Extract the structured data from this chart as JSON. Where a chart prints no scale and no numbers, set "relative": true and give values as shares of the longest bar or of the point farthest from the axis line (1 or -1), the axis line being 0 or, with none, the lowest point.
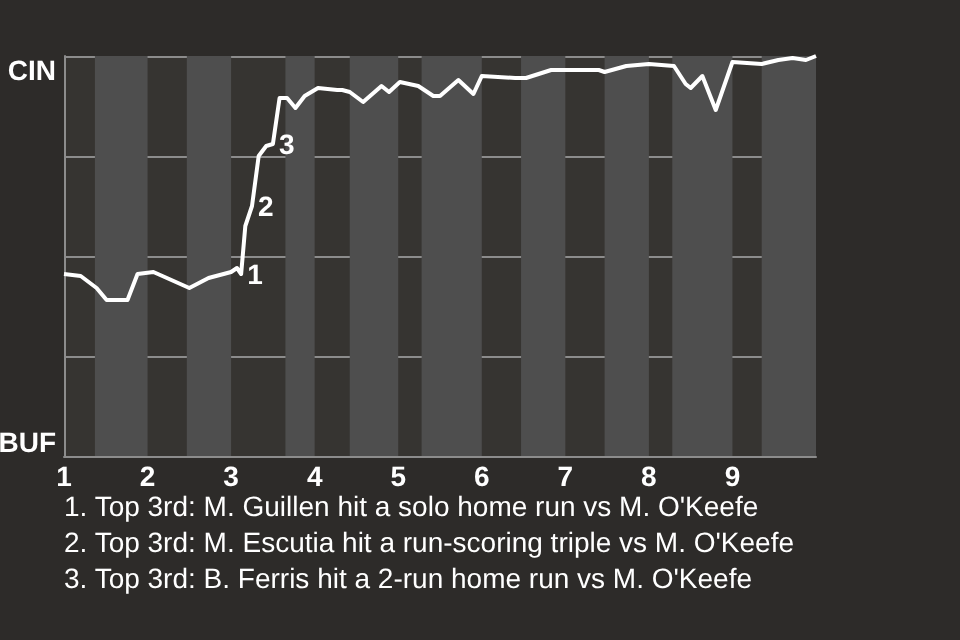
{
  "chart_data": {
    "type": "line",
    "relative": true,
    "x": [
      1.0,
      1.2,
      1.39,
      1.51,
      1.76,
      1.88,
      2.07,
      2.5,
      2.73,
      3.0,
      3.07,
      3.12,
      3.17,
      3.25,
      3.33,
      3.42,
      3.5,
      3.58,
      3.67,
      3.77,
      3.88,
      4.04,
      4.27,
      4.33,
      4.42,
      4.58,
      4.8,
      4.89,
      5.02,
      5.24,
      5.42,
      5.5,
      5.72,
      5.9,
      6.0,
      6.4,
      6.53,
      6.83,
      7.4,
      7.47,
      7.73,
      8.0,
      8.3,
      8.44,
      8.5,
      8.64,
      8.8,
      9.0,
      9.35,
      9.55,
      9.72,
      9.88,
      10.0
    ],
    "series": [
      {
        "values": [
          0.455,
          0.45,
          0.42,
          0.39,
          0.39,
          0.455,
          0.46,
          0.42,
          0.445,
          0.46,
          0.47,
          0.455,
          0.575,
          0.625,
          0.75,
          0.775,
          0.78,
          0.895,
          0.895,
          0.87,
          0.9,
          0.92,
          0.915,
          0.915,
          0.91,
          0.885,
          0.925,
          0.91,
          0.935,
          0.925,
          0.9,
          0.9,
          0.94,
          0.905,
          0.95,
          0.945,
          0.945,
          0.965,
          0.965,
          0.96,
          0.975,
          0.98,
          0.975,
          0.93,
          0.92,
          0.95,
          0.865,
          0.985,
          0.98,
          0.99,
          0.995,
          0.99,
          1.0
        ],
        "color": "#ffffff"
      }
    ],
    "xlim": [
      1,
      10
    ],
    "xticks": [
      1,
      2,
      3,
      4,
      5,
      6,
      7,
      8,
      9
    ],
    "grid": "y",
    "marker": "none",
    "bands": [
      {
        "axis": "x",
        "from": 1.37,
        "to": 2,
        "color": "#4e4e4e"
      },
      {
        "axis": "x",
        "from": 2.47,
        "to": 3,
        "color": "#4e4e4e"
      },
      {
        "axis": "x",
        "from": 3.65,
        "to": 4,
        "color": "#4e4e4e"
      },
      {
        "axis": "x",
        "from": 4.42,
        "to": 5,
        "color": "#4e4e4e"
      },
      {
        "axis": "x",
        "from": 5.28,
        "to": 6,
        "color": "#4e4e4e"
      },
      {
        "axis": "x",
        "from": 6.47,
        "to": 7,
        "color": "#4e4e4e"
      },
      {
        "axis": "x",
        "from": 7.47,
        "to": 8,
        "color": "#4e4e4e"
      },
      {
        "axis": "x",
        "from": 8.28,
        "to": 9,
        "color": "#4e4e4e"
      },
      {
        "axis": "x",
        "from": 9.35,
        "to": 10,
        "color": "#4e4e4e"
      }
    ],
    "annotations": [
      "CIN",
      "BUF",
      {
        "text": "1",
        "x": 3.12,
        "y": 0.455
      },
      {
        "text": "2",
        "x": 3.25,
        "y": 0.625
      },
      {
        "text": "3",
        "x": 3.5,
        "y": 0.78
      },
      "1. Top 3rd: M. Guillen hit a solo home run vs M. O'Keefe",
      "2. Top 3rd: M. Escutia hit a run-scoring triple vs M. O'Keefe",
      "3. Top 3rd: B. Ferris hit a 2-run home run vs M. O'Keefe"
    ]
  }
}
